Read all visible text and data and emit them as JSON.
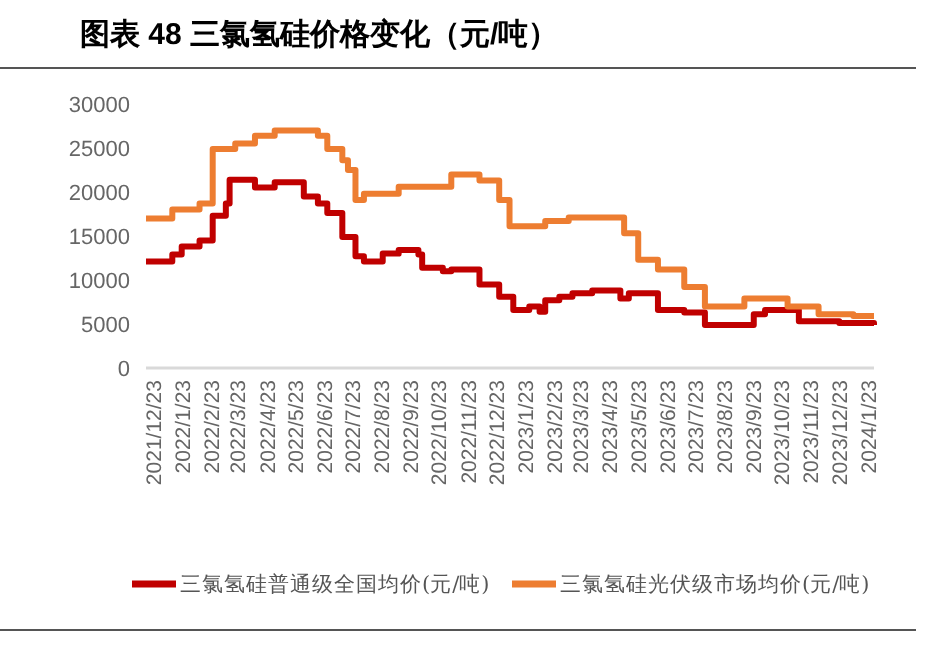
{
  "chart_data": {
    "type": "step",
    "title": "图表 48  三氯氢硅价格变化（元/吨）",
    "xlim": [
      "2021-12-15",
      "2024-01-29"
    ],
    "xticks": [
      {
        "value": "2021-12-23",
        "label": "2021/12/23"
      },
      {
        "value": "2022-01-23",
        "label": "2022/1/23"
      },
      {
        "value": "2022-02-23",
        "label": "2022/2/23"
      },
      {
        "value": "2022-03-23",
        "label": "2022/3/23"
      },
      {
        "value": "2022-04-23",
        "label": "2022/4/23"
      },
      {
        "value": "2022-05-23",
        "label": "2022/5/23"
      },
      {
        "value": "2022-06-23",
        "label": "2022/6/23"
      },
      {
        "value": "2022-07-23",
        "label": "2022/7/23"
      },
      {
        "value": "2022-08-23",
        "label": "2022/8/23"
      },
      {
        "value": "2022-09-23",
        "label": "2022/9/23"
      },
      {
        "value": "2022-10-23",
        "label": "2022/10/23"
      },
      {
        "value": "2022-11-23",
        "label": "2022/11/23"
      },
      {
        "value": "2022-12-23",
        "label": "2022/12/23"
      },
      {
        "value": "2023-01-23",
        "label": "2023/1/23"
      },
      {
        "value": "2023-02-23",
        "label": "2023/2/23"
      },
      {
        "value": "2023-03-23",
        "label": "2023/3/23"
      },
      {
        "value": "2023-04-23",
        "label": "2023/4/23"
      },
      {
        "value": "2023-05-23",
        "label": "2023/5/23"
      },
      {
        "value": "2023-06-23",
        "label": "2023/6/23"
      },
      {
        "value": "2023-07-23",
        "label": "2023/7/23"
      },
      {
        "value": "2023-08-23",
        "label": "2023/8/23"
      },
      {
        "value": "2023-09-23",
        "label": "2023/9/23"
      },
      {
        "value": "2023-10-23",
        "label": "2023/10/23"
      },
      {
        "value": "2023-11-23",
        "label": "2023/11/23"
      },
      {
        "value": "2023-12-23",
        "label": "2023/12/23"
      },
      {
        "value": "2024-01-23",
        "label": "2024/1/23"
      }
    ],
    "ylim": [
      0,
      30000
    ],
    "yticks": [
      0,
      5000,
      10000,
      15000,
      20000,
      25000,
      30000
    ],
    "grid": false,
    "legend": "bottom",
    "line_style": "solid",
    "marker": "none",
    "series": [
      {
        "name": "三氯氢硅普通级全国均价(元/吨)",
        "color": "#c00000",
        "x": [
          "2021-12-15",
          "2022-01-12",
          "2022-01-22",
          "2022-02-10",
          "2022-02-24",
          "2022-03-10",
          "2022-03-14",
          "2022-04-10",
          "2022-05-01",
          "2022-06-01",
          "2022-06-16",
          "2022-06-26",
          "2022-07-12",
          "2022-07-26",
          "2022-08-04",
          "2022-08-24",
          "2022-09-10",
          "2022-10-01",
          "2022-10-05",
          "2022-10-27",
          "2022-11-05",
          "2022-12-05",
          "2022-12-26",
          "2023-01-10",
          "2023-01-27",
          "2023-02-07",
          "2023-02-13",
          "2023-02-28",
          "2023-03-14",
          "2023-04-04",
          "2023-05-04",
          "2023-05-13",
          "2023-06-13",
          "2023-07-11",
          "2023-08-02",
          "2023-09-23",
          "2023-10-05",
          "2023-11-10",
          "2023-12-23",
          "2024-01-29"
        ],
        "values": [
          12100,
          12900,
          13800,
          14500,
          17300,
          18700,
          21400,
          20500,
          21100,
          19500,
          18700,
          17600,
          14900,
          12700,
          12100,
          13000,
          13400,
          12900,
          11400,
          11000,
          11200,
          9500,
          8100,
          6600,
          7000,
          6400,
          7700,
          8100,
          8500,
          8800,
          7900,
          8500,
          6600,
          6300,
          4900,
          6100,
          6600,
          5300,
          5100,
          4900
        ]
      },
      {
        "name": "三氯氢硅光伏级市场均价(元/吨)",
        "color": "#ed7d31",
        "x": [
          "2021-12-15",
          "2022-01-12",
          "2022-02-10",
          "2022-02-24",
          "2022-03-20",
          "2022-04-10",
          "2022-05-01",
          "2022-06-01",
          "2022-06-16",
          "2022-06-26",
          "2022-07-12",
          "2022-07-18",
          "2022-07-26",
          "2022-08-04",
          "2022-09-10",
          "2022-11-05",
          "2022-12-05",
          "2022-12-26",
          "2023-01-06",
          "2023-02-13",
          "2023-03-10",
          "2023-05-08",
          "2023-05-23",
          "2023-06-13",
          "2023-07-11",
          "2023-08-02",
          "2023-09-13",
          "2023-10-29",
          "2023-12-01",
          "2024-01-07",
          "2024-01-29"
        ],
        "values": [
          17000,
          18000,
          18700,
          24900,
          25500,
          26400,
          27000,
          27000,
          26400,
          24900,
          23600,
          22500,
          19100,
          19800,
          20600,
          22000,
          21300,
          19100,
          16100,
          16700,
          17100,
          15300,
          12300,
          11200,
          9200,
          7000,
          7900,
          7000,
          6100,
          5900,
          5900
        ]
      }
    ]
  }
}
